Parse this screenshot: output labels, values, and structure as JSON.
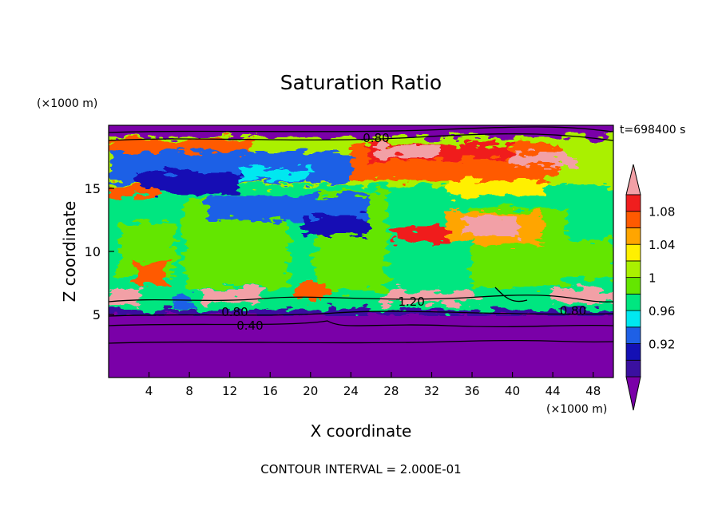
{
  "chart_data": {
    "type": "heatmap",
    "title": "Saturation Ratio",
    "xlabel": "X coordinate",
    "ylabel": "Z coordinate",
    "x_unit": "(×1000 m)",
    "y_unit": "(×1000 m)",
    "time_label": "t=698400 s",
    "footer": "CONTOUR INTERVAL = 2.000E-01",
    "xlim": [
      0,
      50
    ],
    "ylim": [
      0,
      20
    ],
    "x_ticks": [
      4,
      8,
      12,
      16,
      20,
      24,
      28,
      32,
      36,
      40,
      44,
      48
    ],
    "y_ticks": [
      5,
      10,
      15
    ],
    "colorbar": {
      "colors": [
        "#7a00a8",
        "#3a10a0",
        "#1410b4",
        "#1e60e6",
        "#00e8f0",
        "#00e680",
        "#64e600",
        "#aaf000",
        "#fff000",
        "#ffa500",
        "#ff5a00",
        "#f01e1e",
        "#f2a0a6"
      ],
      "labels": [
        "0.92",
        "0.96",
        "1",
        "1.04",
        "1.08"
      ],
      "extend": "both"
    },
    "contour_labels": [
      {
        "text": "0.80",
        "x": 26.5,
        "y": 19.0
      },
      {
        "text": "1.20",
        "x": 30.0,
        "y": 6.0
      },
      {
        "text": "0.80",
        "x": 12.5,
        "y": 5.2
      },
      {
        "text": "0.40",
        "x": 14.0,
        "y": 4.1
      },
      {
        "text": "0.80",
        "x": 46.0,
        "y": 5.3
      }
    ]
  }
}
